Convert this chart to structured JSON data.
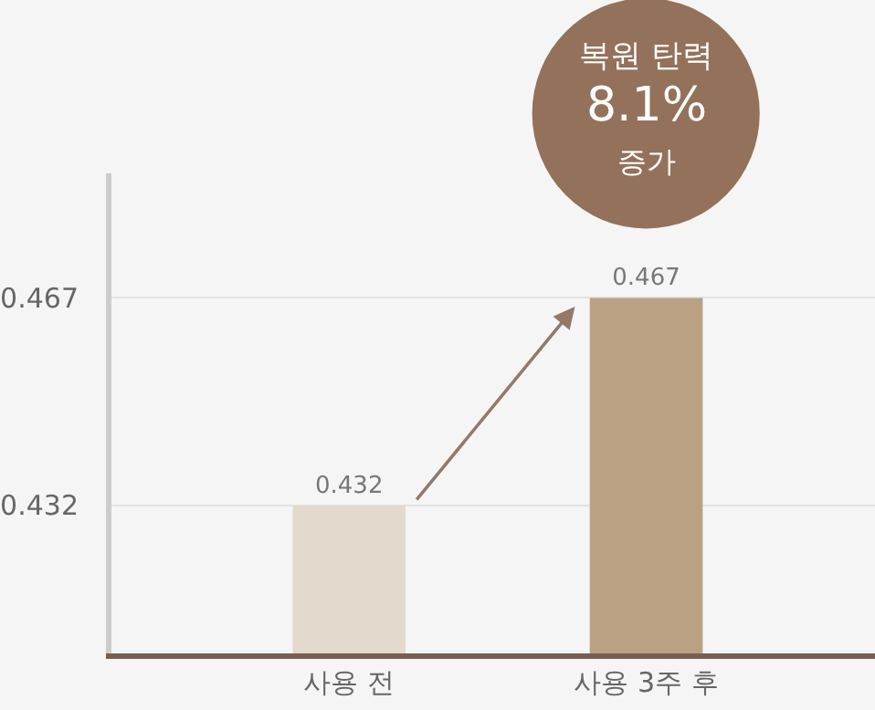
{
  "chart_data": {
    "type": "bar",
    "categories": [
      "사용 전",
      "사용 3주 후"
    ],
    "values": [
      0.432,
      0.467
    ],
    "colors": [
      "#e3dacd",
      "#bba183"
    ],
    "ylim": [
      0.407,
      0.488
    ],
    "yticks": [
      0.432,
      0.467
    ],
    "grid": "y",
    "data_labels": true,
    "legend": false,
    "annotations": [
      "복원 탄력",
      "8.1%",
      "증가"
    ]
  }
}
